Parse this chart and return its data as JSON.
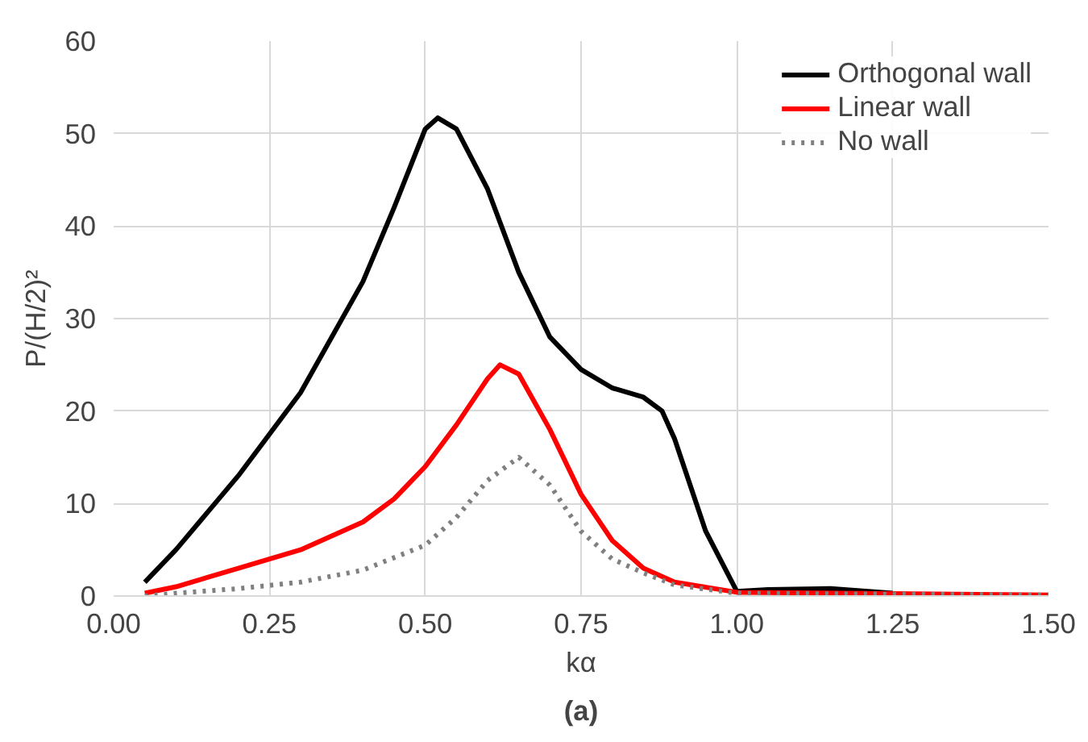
{
  "chart_data": {
    "type": "line",
    "xlabel": "kα",
    "ylabel": "P/(H/2)²",
    "xlim": [
      0,
      1.5
    ],
    "ylim": [
      0,
      60
    ],
    "xticks": [
      {
        "value": 0,
        "label": "0.00"
      },
      {
        "value": 0.25,
        "label": "0.25"
      },
      {
        "value": 0.5,
        "label": "0.50"
      },
      {
        "value": 0.75,
        "label": "0.75"
      },
      {
        "value": 1,
        "label": "1.00"
      },
      {
        "value": 1.25,
        "label": "1.25"
      },
      {
        "value": 1.5,
        "label": "1.50"
      }
    ],
    "yticks": [
      0,
      10,
      20,
      30,
      40,
      50,
      60
    ],
    "grid": true,
    "legend": "top right",
    "marker": "none",
    "annotations": [
      "(a)"
    ],
    "series": [
      {
        "name": "Orthogonal wall",
        "color": "#000000",
        "line_style": "solid",
        "x": [
          0.05,
          0.1,
          0.2,
          0.3,
          0.4,
          0.45,
          0.5,
          0.52,
          0.55,
          0.6,
          0.65,
          0.7,
          0.75,
          0.8,
          0.85,
          0.88,
          0.9,
          0.95,
          1.0,
          1.05,
          1.15,
          1.25
        ],
        "values": [
          1.5,
          5,
          13,
          22,
          34,
          42,
          50.5,
          51.7,
          50.5,
          44,
          35,
          28,
          24.5,
          22.5,
          21.5,
          20,
          17,
          7,
          0.5,
          0.7,
          0.8,
          0.3
        ]
      },
      {
        "name": "Linear wall",
        "color": "#ff0000",
        "line_style": "solid",
        "x": [
          0.05,
          0.1,
          0.2,
          0.3,
          0.4,
          0.45,
          0.5,
          0.55,
          0.6,
          0.62,
          0.65,
          0.7,
          0.75,
          0.8,
          0.85,
          0.9,
          1.0,
          1.5
        ],
        "values": [
          0.3,
          1,
          3,
          5,
          8,
          10.5,
          14,
          18.5,
          23.5,
          25,
          24,
          18,
          11,
          6,
          3,
          1.5,
          0.4,
          0.1
        ]
      },
      {
        "name": "No wall",
        "color": "#808080",
        "line_style": "dotted",
        "x": [
          0.05,
          0.1,
          0.2,
          0.3,
          0.4,
          0.5,
          0.55,
          0.6,
          0.65,
          0.7,
          0.75,
          0.8,
          0.85,
          0.9,
          1.0,
          1.5
        ],
        "values": [
          0,
          0.3,
          0.8,
          1.5,
          2.8,
          5.5,
          8.5,
          12.5,
          15,
          12,
          7,
          4,
          2.5,
          1.2,
          0.3,
          0.1
        ]
      }
    ]
  }
}
